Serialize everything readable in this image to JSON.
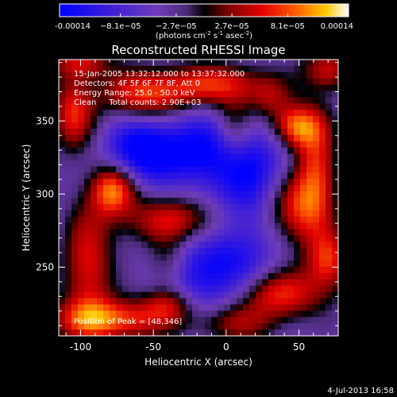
{
  "chart_data": {
    "type": "heatmap",
    "title": "Reconstructed RHESSI Image",
    "xlabel": "Heliocentric X (arcsec)",
    "ylabel": "Heliocentric Y (arcsec)",
    "xlim": [
      -115,
      77
    ],
    "ylim": [
      203,
      392
    ],
    "x_ticks": [
      -100,
      -50,
      0,
      50
    ],
    "y_ticks": [
      250,
      300,
      350
    ],
    "colorbar": {
      "ticks": [
        "-0.00014",
        "−8.1e−05",
        "−2.7e−05",
        "2.7e−05",
        "8.1e−05",
        "0.00014"
      ],
      "values": [
        -0.00014,
        -8.1e-05,
        -2.7e-05,
        2.7e-05,
        8.1e-05,
        0.00014
      ],
      "unit_prefix": "(photons cm",
      "unit_sup1": "-2",
      "unit_mid": " s",
      "unit_sup2": "-1",
      "unit_mid2": " asec",
      "unit_sup3": "-2",
      "unit_suffix": ")",
      "stops": [
        {
          "pos": 0.0,
          "color": "#0000ff"
        },
        {
          "pos": 0.18,
          "color": "#3f1fd6"
        },
        {
          "pos": 0.34,
          "color": "#6f3cb8"
        },
        {
          "pos": 0.44,
          "color": "#4a2a78"
        },
        {
          "pos": 0.5,
          "color": "#000000"
        },
        {
          "pos": 0.58,
          "color": "#7a0000"
        },
        {
          "pos": 0.7,
          "color": "#e00000"
        },
        {
          "pos": 0.82,
          "color": "#ff6000"
        },
        {
          "pos": 0.92,
          "color": "#ffc800"
        },
        {
          "pos": 1.0,
          "color": "#ffffff"
        }
      ]
    },
    "annotations": [
      "15-Jan-2005 13:32:12.000 to 13:37:32.000",
      "Detectors: 4F 5F 6F 7F 8F, Att 0",
      "Energy Range: 25.0 - 50.0 keV",
      "Clean     Total counts: 2.90E+03"
    ],
    "peak_label": "Position of Peak = [48,346]",
    "peak": [
      48,
      346
    ],
    "sources": [
      {
        "x": 48,
        "y": 346,
        "amp": 1.0,
        "sx": 12,
        "sy": 11
      },
      {
        "x": -78,
        "y": 303,
        "amp": 0.95,
        "sx": 11,
        "sy": 12
      },
      {
        "x": -55,
        "y": 368,
        "amp": 0.8,
        "sx": 22,
        "sy": 12
      },
      {
        "x": -5,
        "y": 375,
        "amp": 0.7,
        "sx": 25,
        "sy": 10
      },
      {
        "x": 70,
        "y": 385,
        "amp": 0.65,
        "sx": 12,
        "sy": 10
      },
      {
        "x": -105,
        "y": 355,
        "amp": 0.72,
        "sx": 10,
        "sy": 18
      },
      {
        "x": -95,
        "y": 250,
        "amp": 0.7,
        "sx": 12,
        "sy": 28
      },
      {
        "x": -35,
        "y": 282,
        "amp": 0.72,
        "sx": 26,
        "sy": 12
      },
      {
        "x": 20,
        "y": 300,
        "amp": -0.6,
        "sx": 22,
        "sy": 30
      },
      {
        "x": 45,
        "y": 290,
        "amp": 0.9,
        "sx": 15,
        "sy": 18
      },
      {
        "x": 62,
        "y": 315,
        "amp": 0.78,
        "sx": 10,
        "sy": 25
      },
      {
        "x": 70,
        "y": 255,
        "amp": 0.75,
        "sx": 11,
        "sy": 14
      },
      {
        "x": 35,
        "y": 232,
        "amp": 0.82,
        "sx": 22,
        "sy": 12
      },
      {
        "x": -10,
        "y": 245,
        "amp": -0.7,
        "sx": 25,
        "sy": 20
      },
      {
        "x": 5,
        "y": 212,
        "amp": 0.55,
        "sx": 20,
        "sy": 10
      },
      {
        "x": -80,
        "y": 214,
        "amp": 0.9,
        "sx": 28,
        "sy": 10
      },
      {
        "x": -40,
        "y": 225,
        "amp": 0.6,
        "sx": 12,
        "sy": 9
      },
      {
        "x": -20,
        "y": 330,
        "amp": -0.7,
        "sx": 30,
        "sy": 18
      },
      {
        "x": 5,
        "y": 345,
        "amp": 0.55,
        "sx": 10,
        "sy": 16
      },
      {
        "x": 30,
        "y": 365,
        "amp": 0.4,
        "sx": 10,
        "sy": 10
      },
      {
        "x": -60,
        "y": 330,
        "amp": -0.6,
        "sx": 15,
        "sy": 15
      },
      {
        "x": -40,
        "y": 252,
        "amp": 0.45,
        "sx": 10,
        "sy": 12
      },
      {
        "x": -100,
        "y": 390,
        "amp": 0.6,
        "sx": 14,
        "sy": 8
      }
    ],
    "grid": false
  },
  "footer": {
    "timestamp": "4-Jul-2013 16:58"
  }
}
